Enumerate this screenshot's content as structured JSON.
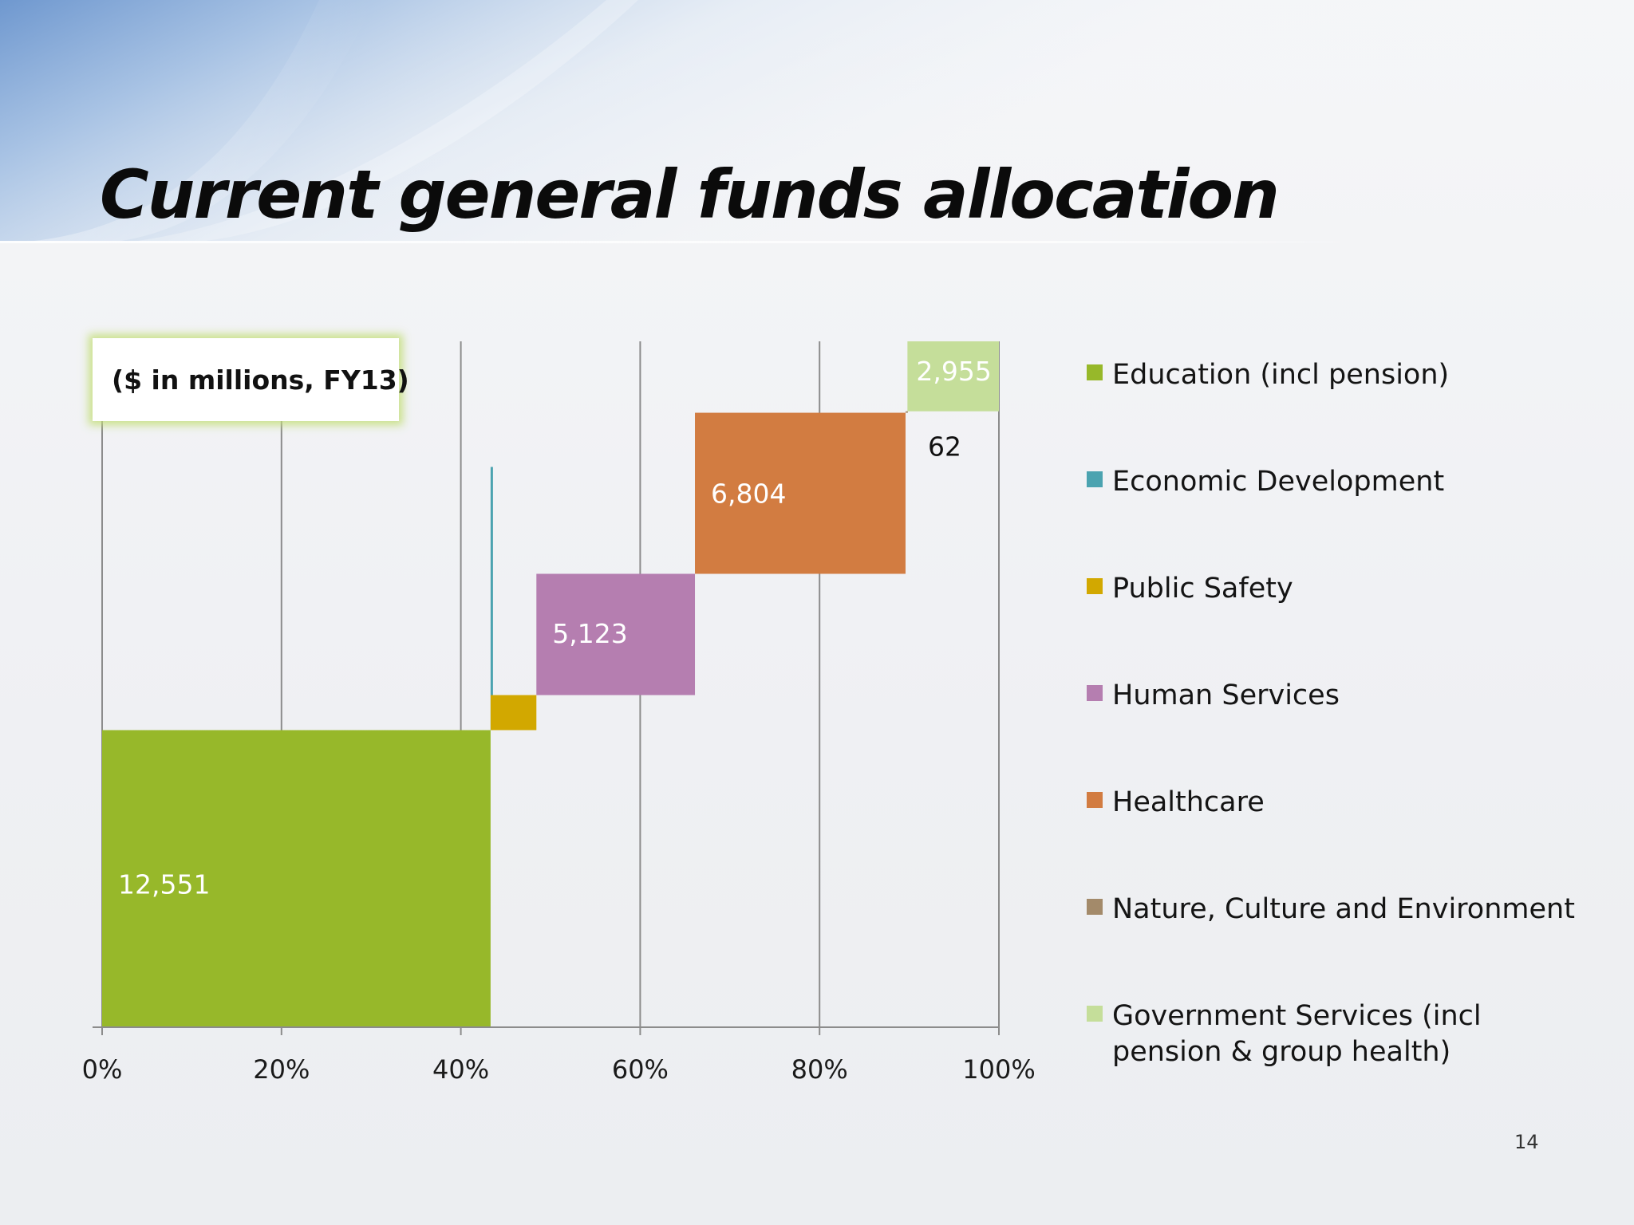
{
  "slide": {
    "title": "Current general funds allocation",
    "units_note": "($ in millions, FY13)",
    "page_number": "14"
  },
  "colors": {
    "background": "#f0f1f4",
    "banner_blue": "#8fb0d8",
    "title_text": "#0b0b0b",
    "gridline": "#8c8c8c",
    "axis": "#8c8c8c",
    "box_glow": "#c3de78"
  },
  "chart_data": {
    "type": "bar",
    "subtype": "cascading stacked bar (Marimekko-style waterfall)",
    "x_axis": {
      "ticks": [
        "0%",
        "20%",
        "40%",
        "60%",
        "80%",
        "100%"
      ],
      "range": [
        0,
        100
      ]
    },
    "gridlines": true,
    "legend_placement": "right",
    "series": [
      {
        "name": "Education  (incl pension)",
        "value": 12551,
        "label": "12,551",
        "color": "#97b82a",
        "label_color": "#ffffff"
      },
      {
        "name": "Economic Development",
        "value": 0,
        "label": "",
        "color": "#4ba3b0",
        "label_color": "#ffffff"
      },
      {
        "name": "Public Safety",
        "value": 1480,
        "label": "",
        "color": "#d2a800",
        "label_color": "#ffffff"
      },
      {
        "name": "Human Services",
        "value": 5123,
        "label": "5,123",
        "color": "#b57eb0",
        "label_color": "#ffffff"
      },
      {
        "name": "Healthcare",
        "value": 6804,
        "label": "6,804",
        "color": "#d27c41",
        "label_color": "#ffffff"
      },
      {
        "name": "Nature, Culture and Environment",
        "value": 62,
        "label": "62",
        "color": "#a38a6a",
        "label_color": "#111111"
      },
      {
        "name": "Government Services (incl pension & group health)",
        "value": 2955,
        "label": "2,955",
        "color": "#c5de9a",
        "label_color": "#ffffff"
      }
    ]
  }
}
